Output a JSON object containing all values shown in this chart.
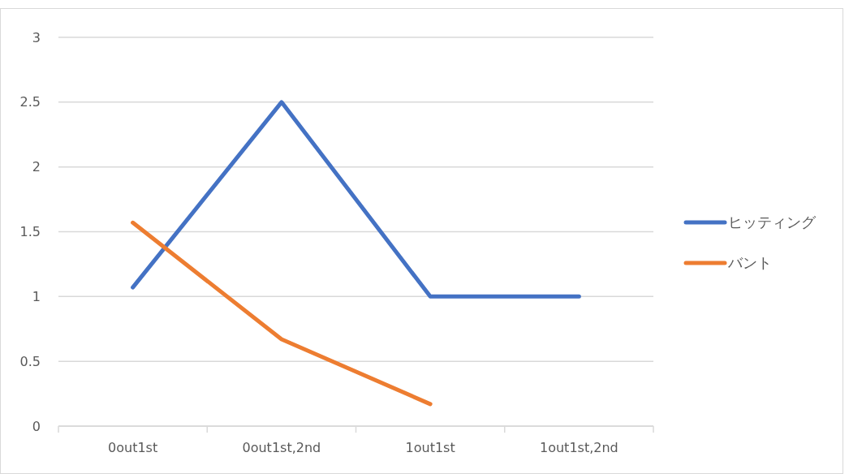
{
  "chart_data": {
    "type": "line",
    "categories": [
      "0out1st",
      "0out1st,2nd",
      "1out1st",
      "1out1st,2nd"
    ],
    "series": [
      {
        "name": "ヒッティング",
        "color": "#4472c4",
        "values": [
          1.07,
          2.5,
          1,
          1
        ]
      },
      {
        "name": "バント",
        "color": "#ed7d31",
        "values": [
          1.57,
          0.67,
          0.17,
          null
        ]
      }
    ],
    "ylim": [
      0,
      3
    ],
    "yticks": [
      0,
      0.5,
      1,
      1.5,
      2,
      2.5,
      3
    ],
    "grid": "y",
    "legend": "right",
    "marker": "none",
    "line_style": "solid"
  }
}
